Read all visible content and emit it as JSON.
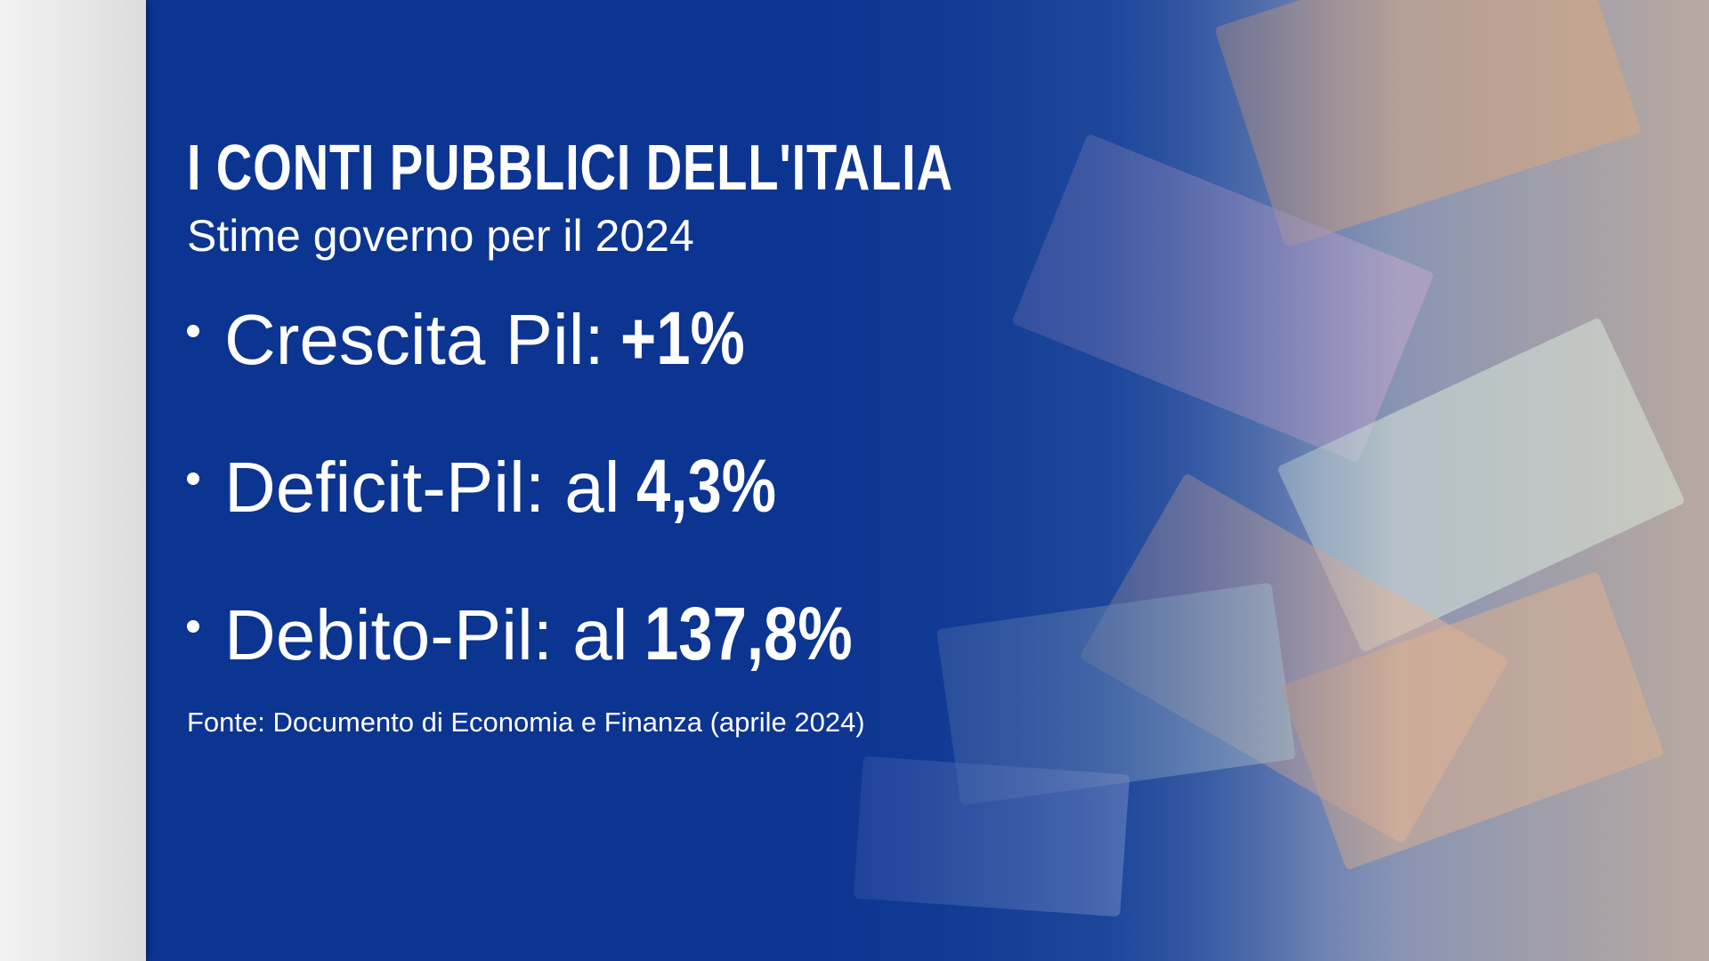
{
  "title": "I CONTI PUBBLICI DELL'ITALIA",
  "subtitle": "Stime governo per il 2024",
  "bullets": [
    {
      "label": "Crescita Pil:",
      "value": "+1%"
    },
    {
      "label": "Deficit-Pil: al",
      "value": "4,3%"
    },
    {
      "label": "Debito-Pil: al",
      "value": "137,8%"
    }
  ],
  "source": "Fonte: Documento di Economia e Finanza (aprile 2024)",
  "colors": {
    "panel": "#0f3a8c",
    "text": "#ffffff"
  }
}
